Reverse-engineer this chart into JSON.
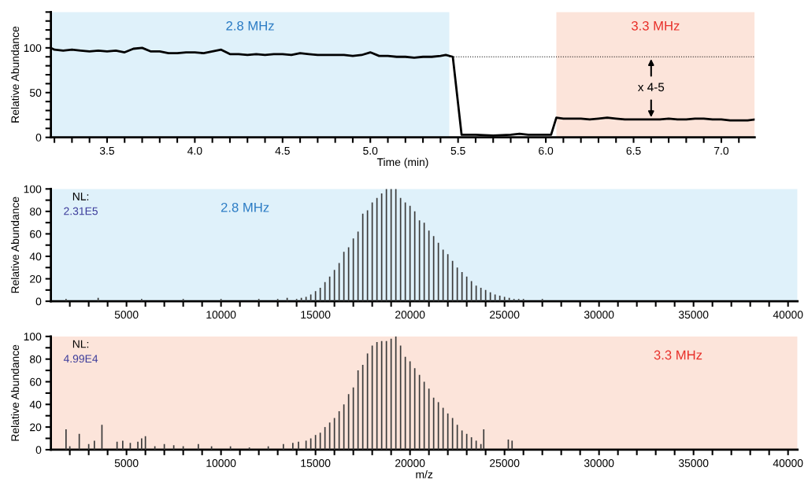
{
  "chart_data": [
    {
      "type": "line",
      "xlabel": "Time (min)",
      "ylabel": "Relative Abundance",
      "xlim": [
        3.18,
        7.19
      ],
      "ylim": [
        0,
        140
      ],
      "xticks": [
        {
          "value": 3.2,
          "label": null
        },
        {
          "value": 3.3,
          "label": null
        },
        {
          "value": 3.4,
          "label": null
        },
        3.5,
        {
          "value": 3.6,
          "label": null
        },
        {
          "value": 3.7,
          "label": null
        },
        {
          "value": 3.8,
          "label": null
        },
        {
          "value": 3.9,
          "label": null
        },
        {
          "value": 4.0,
          "label": "4.0"
        },
        {
          "value": 4.1,
          "label": null
        },
        {
          "value": 4.2,
          "label": null
        },
        {
          "value": 4.3,
          "label": null
        },
        {
          "value": 4.4,
          "label": null
        },
        4.5,
        {
          "value": 4.6,
          "label": null
        },
        {
          "value": 4.7,
          "label": null
        },
        {
          "value": 4.8,
          "label": null
        },
        {
          "value": 4.9,
          "label": null
        },
        {
          "value": 5.0,
          "label": "5.0"
        },
        {
          "value": 5.1,
          "label": null
        },
        {
          "value": 5.2,
          "label": null
        },
        {
          "value": 5.3,
          "label": null
        },
        {
          "value": 5.4,
          "label": null
        },
        5.5,
        {
          "value": 5.6,
          "label": null
        },
        {
          "value": 5.7,
          "label": null
        },
        {
          "value": 5.8,
          "label": null
        },
        {
          "value": 5.9,
          "label": null
        },
        {
          "value": 6.0,
          "label": "6.0"
        },
        {
          "value": 6.1,
          "label": null
        },
        {
          "value": 6.2,
          "label": null
        },
        {
          "value": 6.3,
          "label": null
        },
        {
          "value": 6.4,
          "label": null
        },
        6.5,
        {
          "value": 6.6,
          "label": null
        },
        {
          "value": 6.7,
          "label": null
        },
        {
          "value": 6.8,
          "label": null
        },
        {
          "value": 6.9,
          "label": null
        },
        {
          "value": 7.0,
          "label": "7.0"
        },
        {
          "value": 7.1,
          "label": null
        }
      ],
      "yticks": [
        0,
        {
          "value": 10,
          "label": null
        },
        {
          "value": 20,
          "label": null
        },
        {
          "value": 30,
          "label": null
        },
        {
          "value": 40,
          "label": null
        },
        50,
        {
          "value": 60,
          "label": null
        },
        {
          "value": 70,
          "label": null
        },
        {
          "value": 80,
          "label": null
        },
        {
          "value": 90,
          "label": null
        },
        100,
        {
          "value": 110,
          "label": null
        },
        {
          "value": 120,
          "label": null
        },
        {
          "value": 130,
          "label": null
        },
        {
          "value": 140,
          "label": null
        }
      ],
      "bands": [
        {
          "axis": "x",
          "from": 3.18,
          "to": 5.45,
          "label": "2.8 MHz",
          "color": "#dff1fa"
        },
        {
          "axis": "x",
          "from": 6.06,
          "to": 7.19,
          "label": "3.3 MHz",
          "color": "#fce4da"
        }
      ],
      "ref_lines": [
        {
          "axis": "y",
          "value": 90,
          "color": "#000000",
          "line_style": "dotted"
        }
      ],
      "annotations": [
        {
          "text": "x 4-5",
          "x": 6.6,
          "y": 20
        }
      ],
      "grid": false,
      "legend": false,
      "marker": "none",
      "line_style": "solid",
      "series": [
        {
          "color": "#000000",
          "x": [
            3.18,
            3.2,
            3.25,
            3.3,
            3.35,
            3.4,
            3.45,
            3.5,
            3.55,
            3.6,
            3.65,
            3.7,
            3.75,
            3.8,
            3.85,
            3.9,
            3.95,
            4.0,
            4.05,
            4.1,
            4.15,
            4.2,
            4.25,
            4.3,
            4.35,
            4.4,
            4.45,
            4.5,
            4.55,
            4.6,
            4.65,
            4.7,
            4.75,
            4.8,
            4.85,
            4.9,
            4.95,
            5.0,
            5.05,
            5.1,
            5.15,
            5.2,
            5.25,
            5.3,
            5.35,
            5.4,
            5.43,
            5.47,
            5.52,
            5.6,
            5.7,
            5.8,
            5.85,
            5.9,
            5.95,
            6.03,
            6.06,
            6.1,
            6.15,
            6.2,
            6.25,
            6.3,
            6.35,
            6.4,
            6.45,
            6.5,
            6.55,
            6.6,
            6.65,
            6.7,
            6.75,
            6.8,
            6.85,
            6.9,
            6.95,
            7.0,
            7.05,
            7.1,
            7.15,
            7.19
          ],
          "values": [
            100,
            98,
            97,
            98,
            97,
            96,
            97,
            96,
            97,
            95,
            99,
            100,
            96,
            96,
            94,
            94,
            95,
            95,
            94,
            96,
            98,
            93,
            93,
            92,
            93,
            92,
            93,
            93,
            92,
            94,
            93,
            92,
            92,
            92,
            92,
            91,
            92,
            95,
            91,
            91,
            90,
            90,
            89,
            90,
            90,
            91,
            92,
            90,
            3,
            3,
            2,
            3,
            4,
            3,
            3,
            3,
            22,
            21,
            21,
            21,
            20,
            21,
            22,
            21,
            20,
            20,
            20,
            20,
            20,
            21,
            20,
            20,
            21,
            21,
            20,
            20,
            19,
            19,
            19,
            20
          ]
        }
      ]
    },
    {
      "type": "bar",
      "ylabel": "Relative Abundance",
      "xlim": [
        1000,
        40500
      ],
      "ylim": [
        0,
        100
      ],
      "xticks": [
        {
          "value": 2000,
          "label": null
        },
        {
          "value": 3000,
          "label": null
        },
        {
          "value": 4000,
          "label": null
        },
        5000,
        {
          "value": 6000,
          "label": null
        },
        {
          "value": 7000,
          "label": null
        },
        {
          "value": 8000,
          "label": null
        },
        {
          "value": 9000,
          "label": null
        },
        10000,
        {
          "value": 11000,
          "label": null
        },
        {
          "value": 12000,
          "label": null
        },
        {
          "value": 13000,
          "label": null
        },
        {
          "value": 14000,
          "label": null
        },
        15000,
        {
          "value": 16000,
          "label": null
        },
        {
          "value": 17000,
          "label": null
        },
        {
          "value": 18000,
          "label": null
        },
        {
          "value": 19000,
          "label": null
        },
        20000,
        {
          "value": 21000,
          "label": null
        },
        {
          "value": 22000,
          "label": null
        },
        {
          "value": 23000,
          "label": null
        },
        {
          "value": 24000,
          "label": null
        },
        25000,
        {
          "value": 26000,
          "label": null
        },
        {
          "value": 27000,
          "label": null
        },
        {
          "value": 28000,
          "label": null
        },
        {
          "value": 29000,
          "label": null
        },
        30000,
        {
          "value": 31000,
          "label": null
        },
        {
          "value": 32000,
          "label": null
        },
        {
          "value": 33000,
          "label": null
        },
        {
          "value": 34000,
          "label": null
        },
        35000,
        {
          "value": 36000,
          "label": null
        },
        {
          "value": 37000,
          "label": null
        },
        {
          "value": 38000,
          "label": null
        },
        {
          "value": 39000,
          "label": null
        },
        40000
      ],
      "yticks": [
        0,
        {
          "value": 10,
          "label": null
        },
        20,
        {
          "value": 30,
          "label": null
        },
        40,
        {
          "value": 50,
          "label": null
        },
        60,
        {
          "value": 70,
          "label": null
        },
        80,
        {
          "value": 90,
          "label": null
        },
        100
      ],
      "bands": [
        {
          "axis": "x",
          "from": 1000,
          "to": 40500,
          "label": "2.8 MHz",
          "color": "#dff1fa"
        }
      ],
      "annotations": [
        "NL:",
        "2.31E5"
      ],
      "grid": false,
      "legend": false,
      "series": [
        {
          "color": "#3a3a3a",
          "x": [
            1800,
            3500,
            5800,
            8000,
            10000,
            12000,
            13000,
            13500,
            14000,
            14250,
            14500,
            14750,
            15000,
            15250,
            15500,
            15750,
            16000,
            16250,
            16500,
            16750,
            17000,
            17250,
            17500,
            17750,
            18000,
            18250,
            18500,
            18750,
            19000,
            19250,
            19500,
            19750,
            20000,
            20250,
            20500,
            20750,
            21000,
            21250,
            21500,
            21750,
            22000,
            22250,
            22500,
            22750,
            23000,
            23250,
            23500,
            23750,
            24000,
            24250,
            24500,
            24750,
            25000,
            25250,
            25500,
            25750,
            26000,
            27000
          ],
          "values": [
            2,
            3,
            2,
            2,
            2,
            2,
            2,
            3,
            2,
            3,
            4,
            6,
            9,
            12,
            17,
            22,
            28,
            34,
            44,
            48,
            56,
            62,
            78,
            81,
            88,
            92,
            96,
            100,
            100,
            100,
            92,
            88,
            85,
            80,
            72,
            70,
            63,
            58,
            52,
            46,
            42,
            36,
            30,
            26,
            22,
            18,
            14,
            12,
            10,
            8,
            6,
            5,
            4,
            3,
            2,
            2,
            2,
            2
          ]
        }
      ]
    },
    {
      "type": "bar",
      "xlabel": "m/z",
      "ylabel": "Relative Abundance",
      "xlim": [
        1000,
        40500
      ],
      "ylim": [
        0,
        100
      ],
      "xticks": [
        {
          "value": 2000,
          "label": null
        },
        {
          "value": 3000,
          "label": null
        },
        {
          "value": 4000,
          "label": null
        },
        5000,
        {
          "value": 6000,
          "label": null
        },
        {
          "value": 7000,
          "label": null
        },
        {
          "value": 8000,
          "label": null
        },
        {
          "value": 9000,
          "label": null
        },
        10000,
        {
          "value": 11000,
          "label": null
        },
        {
          "value": 12000,
          "label": null
        },
        {
          "value": 13000,
          "label": null
        },
        {
          "value": 14000,
          "label": null
        },
        15000,
        {
          "value": 16000,
          "label": null
        },
        {
          "value": 17000,
          "label": null
        },
        {
          "value": 18000,
          "label": null
        },
        {
          "value": 19000,
          "label": null
        },
        20000,
        {
          "value": 21000,
          "label": null
        },
        {
          "value": 22000,
          "label": null
        },
        {
          "value": 23000,
          "label": null
        },
        {
          "value": 24000,
          "label": null
        },
        25000,
        {
          "value": 26000,
          "label": null
        },
        {
          "value": 27000,
          "label": null
        },
        {
          "value": 28000,
          "label": null
        },
        {
          "value": 29000,
          "label": null
        },
        30000,
        {
          "value": 31000,
          "label": null
        },
        {
          "value": 32000,
          "label": null
        },
        {
          "value": 33000,
          "label": null
        },
        {
          "value": 34000,
          "label": null
        },
        35000,
        {
          "value": 36000,
          "label": null
        },
        {
          "value": 37000,
          "label": null
        },
        {
          "value": 38000,
          "label": null
        },
        {
          "value": 39000,
          "label": null
        },
        40000
      ],
      "yticks": [
        0,
        {
          "value": 10,
          "label": null
        },
        20,
        {
          "value": 30,
          "label": null
        },
        40,
        {
          "value": 50,
          "label": null
        },
        60,
        {
          "value": 70,
          "label": null
        },
        80,
        {
          "value": 90,
          "label": null
        },
        100
      ],
      "bands": [
        {
          "axis": "x",
          "from": 1000,
          "to": 40500,
          "label": "3.3 MHz",
          "color": "#fce4da"
        }
      ],
      "annotations": [
        "NL:",
        "4.99E4"
      ],
      "grid": false,
      "legend": false,
      "series": [
        {
          "color": "#3a3a3a",
          "x": [
            1800,
            2000,
            2500,
            3000,
            3300,
            3700,
            4500,
            4800,
            5200,
            5600,
            5800,
            6000,
            6500,
            7000,
            7500,
            8000,
            8800,
            9500,
            10500,
            11500,
            12500,
            13300,
            13800,
            14100,
            14500,
            14750,
            15000,
            15250,
            15500,
            15750,
            16000,
            16250,
            16500,
            16750,
            17000,
            17250,
            17500,
            17750,
            18000,
            18250,
            18500,
            18750,
            19000,
            19250,
            19500,
            19750,
            20000,
            20250,
            20500,
            20750,
            21000,
            21250,
            21500,
            21750,
            22000,
            22250,
            22500,
            22750,
            23000,
            23250,
            23500,
            23750,
            23900,
            25200,
            25400
          ],
          "values": [
            18,
            3,
            14,
            5,
            8,
            22,
            7,
            8,
            6,
            7,
            10,
            12,
            3,
            5,
            4,
            3,
            5,
            3,
            3,
            2,
            3,
            5,
            6,
            7,
            8,
            10,
            13,
            15,
            20,
            24,
            28,
            34,
            40,
            49,
            55,
            70,
            75,
            85,
            92,
            95,
            96,
            96,
            98,
            100,
            92,
            82,
            78,
            72,
            66,
            60,
            54,
            46,
            42,
            37,
            32,
            28,
            22,
            17,
            14,
            11,
            8,
            5,
            18,
            9,
            8
          ]
        }
      ]
    }
  ]
}
